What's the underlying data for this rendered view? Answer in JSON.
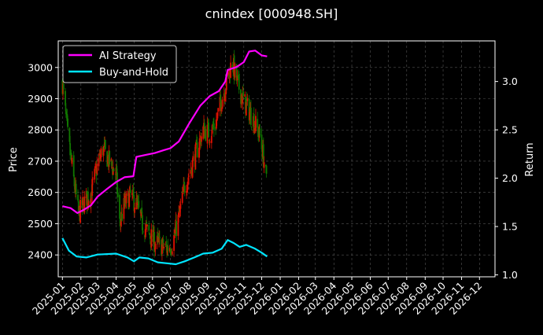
{
  "chart_data": {
    "type": "line",
    "title": "cnindex [000948.SH]",
    "ylabel_left": "Price",
    "ylabel_right": "Return",
    "xlabel": "",
    "x_ticks": [
      "2025-01",
      "2025-02",
      "2025-03",
      "2025-04",
      "2025-05",
      "2025-06",
      "2025-07",
      "2025-08",
      "2025-09",
      "2025-10",
      "2025-11",
      "2025-12",
      "2026-01",
      "2026-02",
      "2026-03",
      "2026-04",
      "2026-05",
      "2026-06",
      "2026-07",
      "2026-08",
      "2026-09",
      "2026-10",
      "2026-11",
      "2026-12"
    ],
    "x_range": [
      "2024-12-25",
      "2026-12-27"
    ],
    "left_axis": {
      "ylim": [
        2330,
        3085
      ],
      "ticks": [
        2400,
        2500,
        2600,
        2700,
        2800,
        2900,
        3000
      ]
    },
    "right_axis": {
      "ylim": [
        0.98,
        3.42
      ],
      "ticks": [
        1.0,
        1.5,
        2.0,
        2.5,
        3.0
      ],
      "tick_labels": [
        "1.0",
        "1.5",
        "2.0",
        "2.5",
        "3.0"
      ]
    },
    "grid": true,
    "legend_position": "top-left",
    "colors": {
      "up": "#dd1100",
      "down": "#117700",
      "ai": "#ff00ff",
      "bh": "#00e5ff",
      "background": "#000000",
      "grid": "#555555"
    },
    "candlestick_close_anchors": [
      {
        "date": "2025-01-01",
        "close": 2950
      },
      {
        "date": "2025-01-10",
        "close": 2780
      },
      {
        "date": "2025-01-20",
        "close": 2640
      },
      {
        "date": "2025-01-28",
        "close": 2530
      },
      {
        "date": "2025-02-07",
        "close": 2570
      },
      {
        "date": "2025-02-18",
        "close": 2600
      },
      {
        "date": "2025-03-01",
        "close": 2690
      },
      {
        "date": "2025-03-10",
        "close": 2740
      },
      {
        "date": "2025-03-20",
        "close": 2700
      },
      {
        "date": "2025-04-01",
        "close": 2660
      },
      {
        "date": "2025-04-07",
        "close": 2500
      },
      {
        "date": "2025-04-15",
        "close": 2560
      },
      {
        "date": "2025-04-25",
        "close": 2590
      },
      {
        "date": "2025-05-05",
        "close": 2560
      },
      {
        "date": "2025-05-15",
        "close": 2500
      },
      {
        "date": "2025-05-25",
        "close": 2470
      },
      {
        "date": "2025-06-05",
        "close": 2440
      },
      {
        "date": "2025-06-15",
        "close": 2430
      },
      {
        "date": "2025-06-25",
        "close": 2420
      },
      {
        "date": "2025-07-05",
        "close": 2440
      },
      {
        "date": "2025-07-15",
        "close": 2520
      },
      {
        "date": "2025-07-25",
        "close": 2620
      },
      {
        "date": "2025-08-05",
        "close": 2680
      },
      {
        "date": "2025-08-15",
        "close": 2740
      },
      {
        "date": "2025-08-25",
        "close": 2800
      },
      {
        "date": "2025-09-05",
        "close": 2790
      },
      {
        "date": "2025-09-15",
        "close": 2820
      },
      {
        "date": "2025-09-25",
        "close": 2900
      },
      {
        "date": "2025-10-05",
        "close": 2960
      },
      {
        "date": "2025-10-12",
        "close": 3020
      },
      {
        "date": "2025-10-20",
        "close": 2960
      },
      {
        "date": "2025-10-30",
        "close": 2900
      },
      {
        "date": "2025-11-10",
        "close": 2860
      },
      {
        "date": "2025-11-20",
        "close": 2820
      },
      {
        "date": "2025-11-28",
        "close": 2780
      },
      {
        "date": "2025-12-05",
        "close": 2700
      },
      {
        "date": "2025-12-10",
        "close": 2620
      }
    ],
    "series": [
      {
        "name": "AI Strategy",
        "axis": "right",
        "color": "#ff00ff",
        "points": [
          {
            "date": "2025-01-01",
            "value": 1.71
          },
          {
            "date": "2025-01-15",
            "value": 1.69
          },
          {
            "date": "2025-01-26",
            "value": 1.64
          },
          {
            "date": "2025-02-05",
            "value": 1.67
          },
          {
            "date": "2025-02-18",
            "value": 1.72
          },
          {
            "date": "2025-03-01",
            "value": 1.81
          },
          {
            "date": "2025-03-15",
            "value": 1.88
          },
          {
            "date": "2025-04-01",
            "value": 1.96
          },
          {
            "date": "2025-04-15",
            "value": 2.01
          },
          {
            "date": "2025-04-30",
            "value": 2.02
          },
          {
            "date": "2025-05-05",
            "value": 2.22
          },
          {
            "date": "2025-05-20",
            "value": 2.24
          },
          {
            "date": "2025-06-05",
            "value": 2.26
          },
          {
            "date": "2025-06-20",
            "value": 2.29
          },
          {
            "date": "2025-07-01",
            "value": 2.31
          },
          {
            "date": "2025-07-15",
            "value": 2.38
          },
          {
            "date": "2025-08-01",
            "value": 2.56
          },
          {
            "date": "2025-08-20",
            "value": 2.75
          },
          {
            "date": "2025-09-05",
            "value": 2.85
          },
          {
            "date": "2025-09-20",
            "value": 2.9
          },
          {
            "date": "2025-10-01",
            "value": 3.0
          },
          {
            "date": "2025-10-05",
            "value": 3.12
          },
          {
            "date": "2025-10-20",
            "value": 3.15
          },
          {
            "date": "2025-11-01",
            "value": 3.2
          },
          {
            "date": "2025-11-10",
            "value": 3.31
          },
          {
            "date": "2025-11-20",
            "value": 3.32
          },
          {
            "date": "2025-12-01",
            "value": 3.27
          },
          {
            "date": "2025-12-10",
            "value": 3.26
          }
        ]
      },
      {
        "name": "Buy-and-Hold",
        "axis": "right",
        "color": "#00e5ff",
        "points": [
          {
            "date": "2025-01-01",
            "value": 1.38
          },
          {
            "date": "2025-01-12",
            "value": 1.25
          },
          {
            "date": "2025-01-25",
            "value": 1.19
          },
          {
            "date": "2025-02-10",
            "value": 1.18
          },
          {
            "date": "2025-03-01",
            "value": 1.21
          },
          {
            "date": "2025-04-01",
            "value": 1.22
          },
          {
            "date": "2025-04-20",
            "value": 1.18
          },
          {
            "date": "2025-05-01",
            "value": 1.14
          },
          {
            "date": "2025-05-10",
            "value": 1.18
          },
          {
            "date": "2025-05-25",
            "value": 1.17
          },
          {
            "date": "2025-06-10",
            "value": 1.13
          },
          {
            "date": "2025-06-25",
            "value": 1.12
          },
          {
            "date": "2025-07-10",
            "value": 1.11
          },
          {
            "date": "2025-07-25",
            "value": 1.14
          },
          {
            "date": "2025-08-10",
            "value": 1.18
          },
          {
            "date": "2025-08-25",
            "value": 1.22
          },
          {
            "date": "2025-09-10",
            "value": 1.23
          },
          {
            "date": "2025-09-25",
            "value": 1.27
          },
          {
            "date": "2025-10-05",
            "value": 1.36
          },
          {
            "date": "2025-10-15",
            "value": 1.33
          },
          {
            "date": "2025-10-25",
            "value": 1.29
          },
          {
            "date": "2025-11-05",
            "value": 1.31
          },
          {
            "date": "2025-11-20",
            "value": 1.27
          },
          {
            "date": "2025-12-01",
            "value": 1.23
          },
          {
            "date": "2025-12-10",
            "value": 1.19
          }
        ]
      }
    ]
  }
}
